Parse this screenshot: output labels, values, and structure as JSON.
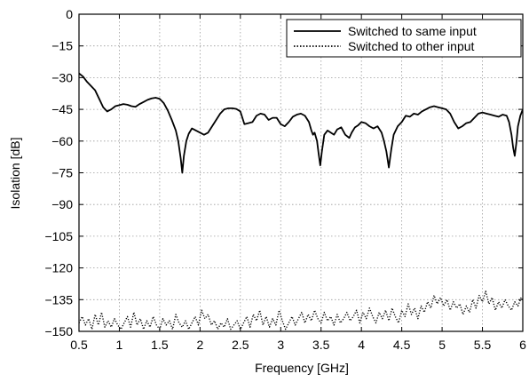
{
  "chart_data": {
    "type": "line",
    "xlabel": "Frequency [GHz]",
    "ylabel": "Isolation [dB]",
    "xlim": [
      0.5,
      6
    ],
    "ylim": [
      -150,
      0
    ],
    "xticks": [
      "0.5",
      "1",
      "1.5",
      "2",
      "2.5",
      "3",
      "3.5",
      "4",
      "4.5",
      "5",
      "5.5",
      "6"
    ],
    "yticks": [
      "0",
      "−15",
      "−30",
      "−45",
      "−60",
      "−75",
      "−90",
      "−105",
      "−120",
      "−135",
      "−150"
    ],
    "grid": true,
    "legend_position": "top-right",
    "series": [
      {
        "name": "Switched to same input",
        "style": "solid",
        "color": "#000000",
        "points": [
          [
            0.5,
            -28
          ],
          [
            0.55,
            -29.5
          ],
          [
            0.6,
            -32
          ],
          [
            0.65,
            -34
          ],
          [
            0.7,
            -36
          ],
          [
            0.75,
            -40
          ],
          [
            0.8,
            -44
          ],
          [
            0.85,
            -46
          ],
          [
            0.9,
            -45
          ],
          [
            0.95,
            -43.5
          ],
          [
            1.0,
            -43
          ],
          [
            1.05,
            -42.5
          ],
          [
            1.1,
            -42.8
          ],
          [
            1.15,
            -43.5
          ],
          [
            1.2,
            -43.8
          ],
          [
            1.25,
            -42.5
          ],
          [
            1.3,
            -41.5
          ],
          [
            1.35,
            -40.5
          ],
          [
            1.4,
            -39.8
          ],
          [
            1.45,
            -39.5
          ],
          [
            1.5,
            -40
          ],
          [
            1.55,
            -42
          ],
          [
            1.6,
            -45.5
          ],
          [
            1.65,
            -50
          ],
          [
            1.7,
            -55
          ],
          [
            1.73,
            -60
          ],
          [
            1.76,
            -68
          ],
          [
            1.78,
            -75
          ],
          [
            1.8,
            -67
          ],
          [
            1.83,
            -60
          ],
          [
            1.86,
            -56.5
          ],
          [
            1.9,
            -54
          ],
          [
            1.95,
            -55
          ],
          [
            2.0,
            -56
          ],
          [
            2.05,
            -57
          ],
          [
            2.1,
            -56
          ],
          [
            2.15,
            -53
          ],
          [
            2.2,
            -50
          ],
          [
            2.25,
            -47
          ],
          [
            2.3,
            -45
          ],
          [
            2.35,
            -44.5
          ],
          [
            2.4,
            -44.5
          ],
          [
            2.45,
            -44.8
          ],
          [
            2.5,
            -46
          ],
          [
            2.55,
            -52
          ],
          [
            2.6,
            -51.5
          ],
          [
            2.65,
            -51
          ],
          [
            2.7,
            -48
          ],
          [
            2.75,
            -47
          ],
          [
            2.8,
            -47.5
          ],
          [
            2.85,
            -50
          ],
          [
            2.9,
            -49
          ],
          [
            2.95,
            -49
          ],
          [
            3.0,
            -52
          ],
          [
            3.05,
            -53
          ],
          [
            3.1,
            -51
          ],
          [
            3.15,
            -48.5
          ],
          [
            3.2,
            -47.5
          ],
          [
            3.25,
            -47
          ],
          [
            3.3,
            -48
          ],
          [
            3.35,
            -51
          ],
          [
            3.38,
            -55
          ],
          [
            3.4,
            -57
          ],
          [
            3.42,
            -56
          ],
          [
            3.45,
            -60
          ],
          [
            3.47,
            -66
          ],
          [
            3.49,
            -71.5
          ],
          [
            3.51,
            -65
          ],
          [
            3.54,
            -57
          ],
          [
            3.58,
            -55
          ],
          [
            3.62,
            -56
          ],
          [
            3.66,
            -57
          ],
          [
            3.7,
            -54.5
          ],
          [
            3.75,
            -53.5
          ],
          [
            3.8,
            -57
          ],
          [
            3.85,
            -58.5
          ],
          [
            3.88,
            -56
          ],
          [
            3.92,
            -53.5
          ],
          [
            3.96,
            -52.5
          ],
          [
            4.0,
            -51
          ],
          [
            4.05,
            -51.5
          ],
          [
            4.1,
            -53
          ],
          [
            4.15,
            -54
          ],
          [
            4.2,
            -53
          ],
          [
            4.25,
            -56
          ],
          [
            4.28,
            -60
          ],
          [
            4.31,
            -65
          ],
          [
            4.34,
            -72.5
          ],
          [
            4.37,
            -64
          ],
          [
            4.4,
            -57
          ],
          [
            4.45,
            -53
          ],
          [
            4.5,
            -51
          ],
          [
            4.55,
            -48
          ],
          [
            4.6,
            -48.5
          ],
          [
            4.65,
            -47
          ],
          [
            4.7,
            -47.5
          ],
          [
            4.75,
            -46
          ],
          [
            4.8,
            -45
          ],
          [
            4.85,
            -44
          ],
          [
            4.9,
            -43.5
          ],
          [
            4.95,
            -44
          ],
          [
            5.0,
            -44.5
          ],
          [
            5.05,
            -45
          ],
          [
            5.1,
            -47
          ],
          [
            5.15,
            -51
          ],
          [
            5.2,
            -54
          ],
          [
            5.25,
            -53
          ],
          [
            5.3,
            -51.5
          ],
          [
            5.35,
            -51
          ],
          [
            5.4,
            -49
          ],
          [
            5.45,
            -47
          ],
          [
            5.5,
            -46.5
          ],
          [
            5.55,
            -47
          ],
          [
            5.6,
            -47.5
          ],
          [
            5.65,
            -48
          ],
          [
            5.7,
            -48.5
          ],
          [
            5.75,
            -47.5
          ],
          [
            5.8,
            -48
          ],
          [
            5.83,
            -51
          ],
          [
            5.86,
            -57
          ],
          [
            5.88,
            -63
          ],
          [
            5.9,
            -67
          ],
          [
            5.92,
            -61
          ],
          [
            5.94,
            -53
          ],
          [
            5.97,
            -48
          ],
          [
            6.0,
            -45
          ]
        ]
      },
      {
        "name": "Switched to other input",
        "style": "dotted",
        "color": "#000000",
        "points": [
          [
            0.5,
            -146
          ],
          [
            0.54,
            -143
          ],
          [
            0.58,
            -147
          ],
          [
            0.62,
            -144
          ],
          [
            0.66,
            -149
          ],
          [
            0.7,
            -142
          ],
          [
            0.74,
            -147
          ],
          [
            0.78,
            -141
          ],
          [
            0.82,
            -148
          ],
          [
            0.86,
            -145
          ],
          [
            0.9,
            -148
          ],
          [
            0.94,
            -144
          ],
          [
            0.98,
            -147
          ],
          [
            1.02,
            -149
          ],
          [
            1.06,
            -146
          ],
          [
            1.1,
            -143
          ],
          [
            1.14,
            -148
          ],
          [
            1.18,
            -141
          ],
          [
            1.22,
            -147
          ],
          [
            1.26,
            -144
          ],
          [
            1.3,
            -149
          ],
          [
            1.34,
            -145
          ],
          [
            1.38,
            -148
          ],
          [
            1.42,
            -143
          ],
          [
            1.46,
            -147
          ],
          [
            1.5,
            -149
          ],
          [
            1.54,
            -144
          ],
          [
            1.58,
            -147
          ],
          [
            1.62,
            -145
          ],
          [
            1.66,
            -149
          ],
          [
            1.7,
            -142
          ],
          [
            1.74,
            -146
          ],
          [
            1.78,
            -148
          ],
          [
            1.82,
            -145
          ],
          [
            1.86,
            -149
          ],
          [
            1.9,
            -146
          ],
          [
            1.94,
            -143
          ],
          [
            1.98,
            -147
          ],
          [
            2.02,
            -140
          ],
          [
            2.06,
            -144
          ],
          [
            2.1,
            -142
          ],
          [
            2.14,
            -147
          ],
          [
            2.18,
            -145
          ],
          [
            2.22,
            -149
          ],
          [
            2.26,
            -146
          ],
          [
            2.3,
            -148
          ],
          [
            2.34,
            -144
          ],
          [
            2.38,
            -149
          ],
          [
            2.42,
            -147
          ],
          [
            2.46,
            -145
          ],
          [
            2.5,
            -149
          ],
          [
            2.54,
            -146
          ],
          [
            2.58,
            -143
          ],
          [
            2.62,
            -148
          ],
          [
            2.66,
            -142
          ],
          [
            2.7,
            -145
          ],
          [
            2.74,
            -140
          ],
          [
            2.78,
            -147
          ],
          [
            2.82,
            -143
          ],
          [
            2.86,
            -148
          ],
          [
            2.9,
            -144
          ],
          [
            2.94,
            -147
          ],
          [
            2.98,
            -140
          ],
          [
            3.02,
            -145
          ],
          [
            3.06,
            -149
          ],
          [
            3.1,
            -146
          ],
          [
            3.14,
            -143
          ],
          [
            3.18,
            -147
          ],
          [
            3.22,
            -144
          ],
          [
            3.26,
            -141
          ],
          [
            3.3,
            -146
          ],
          [
            3.34,
            -142
          ],
          [
            3.38,
            -145
          ],
          [
            3.42,
            -140
          ],
          [
            3.46,
            -144
          ],
          [
            3.5,
            -146
          ],
          [
            3.54,
            -141
          ],
          [
            3.58,
            -145
          ],
          [
            3.62,
            -143
          ],
          [
            3.66,
            -147
          ],
          [
            3.7,
            -142
          ],
          [
            3.74,
            -146
          ],
          [
            3.78,
            -144
          ],
          [
            3.82,
            -141
          ],
          [
            3.86,
            -145
          ],
          [
            3.9,
            -143
          ],
          [
            3.94,
            -140
          ],
          [
            3.98,
            -146
          ],
          [
            4.02,
            -141
          ],
          [
            4.06,
            -144
          ],
          [
            4.1,
            -139
          ],
          [
            4.14,
            -143
          ],
          [
            4.18,
            -146
          ],
          [
            4.22,
            -141
          ],
          [
            4.26,
            -144
          ],
          [
            4.3,
            -140
          ],
          [
            4.34,
            -145
          ],
          [
            4.38,
            -139
          ],
          [
            4.42,
            -143
          ],
          [
            4.46,
            -146
          ],
          [
            4.5,
            -140
          ],
          [
            4.54,
            -143
          ],
          [
            4.58,
            -137
          ],
          [
            4.62,
            -142
          ],
          [
            4.66,
            -139
          ],
          [
            4.7,
            -144
          ],
          [
            4.74,
            -138
          ],
          [
            4.78,
            -141
          ],
          [
            4.82,
            -136
          ],
          [
            4.86,
            -139
          ],
          [
            4.9,
            -133
          ],
          [
            4.94,
            -137
          ],
          [
            4.98,
            -134
          ],
          [
            5.02,
            -138
          ],
          [
            5.06,
            -135
          ],
          [
            5.1,
            -140
          ],
          [
            5.14,
            -136
          ],
          [
            5.18,
            -139
          ],
          [
            5.22,
            -137
          ],
          [
            5.26,
            -142
          ],
          [
            5.3,
            -138
          ],
          [
            5.34,
            -141
          ],
          [
            5.38,
            -135
          ],
          [
            5.42,
            -139
          ],
          [
            5.46,
            -133
          ],
          [
            5.5,
            -136
          ],
          [
            5.54,
            -131
          ],
          [
            5.58,
            -137
          ],
          [
            5.62,
            -134
          ],
          [
            5.66,
            -140
          ],
          [
            5.7,
            -136
          ],
          [
            5.74,
            -139
          ],
          [
            5.78,
            -135
          ],
          [
            5.82,
            -138
          ],
          [
            5.86,
            -140
          ],
          [
            5.9,
            -136
          ],
          [
            5.94,
            -138
          ],
          [
            5.98,
            -134
          ],
          [
            6.0,
            -135
          ]
        ]
      }
    ]
  }
}
